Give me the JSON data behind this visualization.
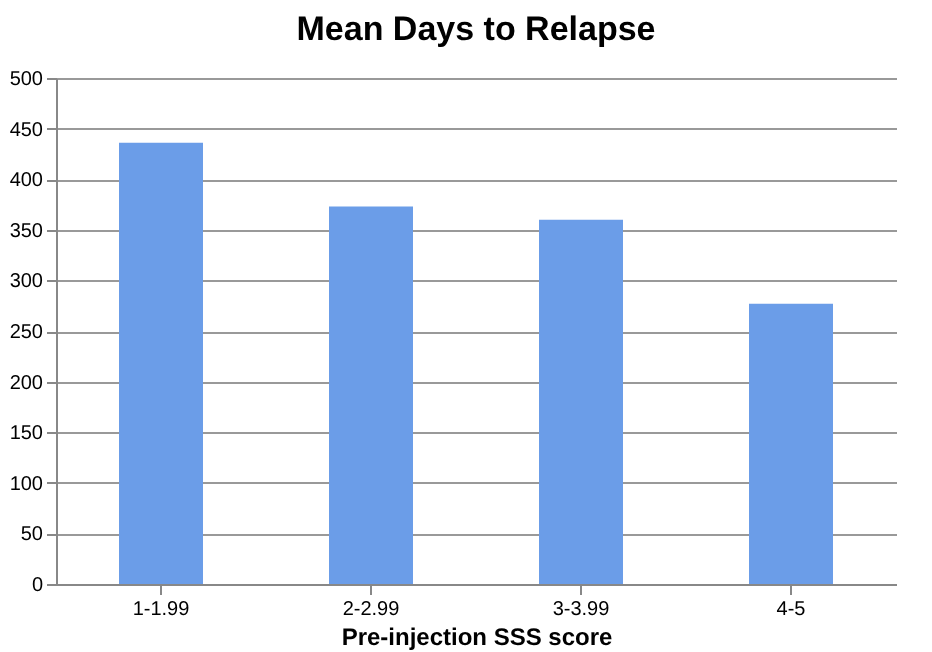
{
  "chart_data": {
    "type": "bar",
    "title": "Mean Days to Relapse",
    "xlabel": "Pre-injection SSS score",
    "categories": [
      "1-1.99",
      "2-2.99",
      "3-3.99",
      "4-5"
    ],
    "values": [
      436,
      373,
      360,
      277
    ],
    "color": "#6b9de8",
    "ylim": [
      0,
      500
    ],
    "yticks": [
      0,
      50,
      100,
      150,
      200,
      250,
      300,
      350,
      400,
      450,
      500
    ],
    "grid": "y"
  }
}
